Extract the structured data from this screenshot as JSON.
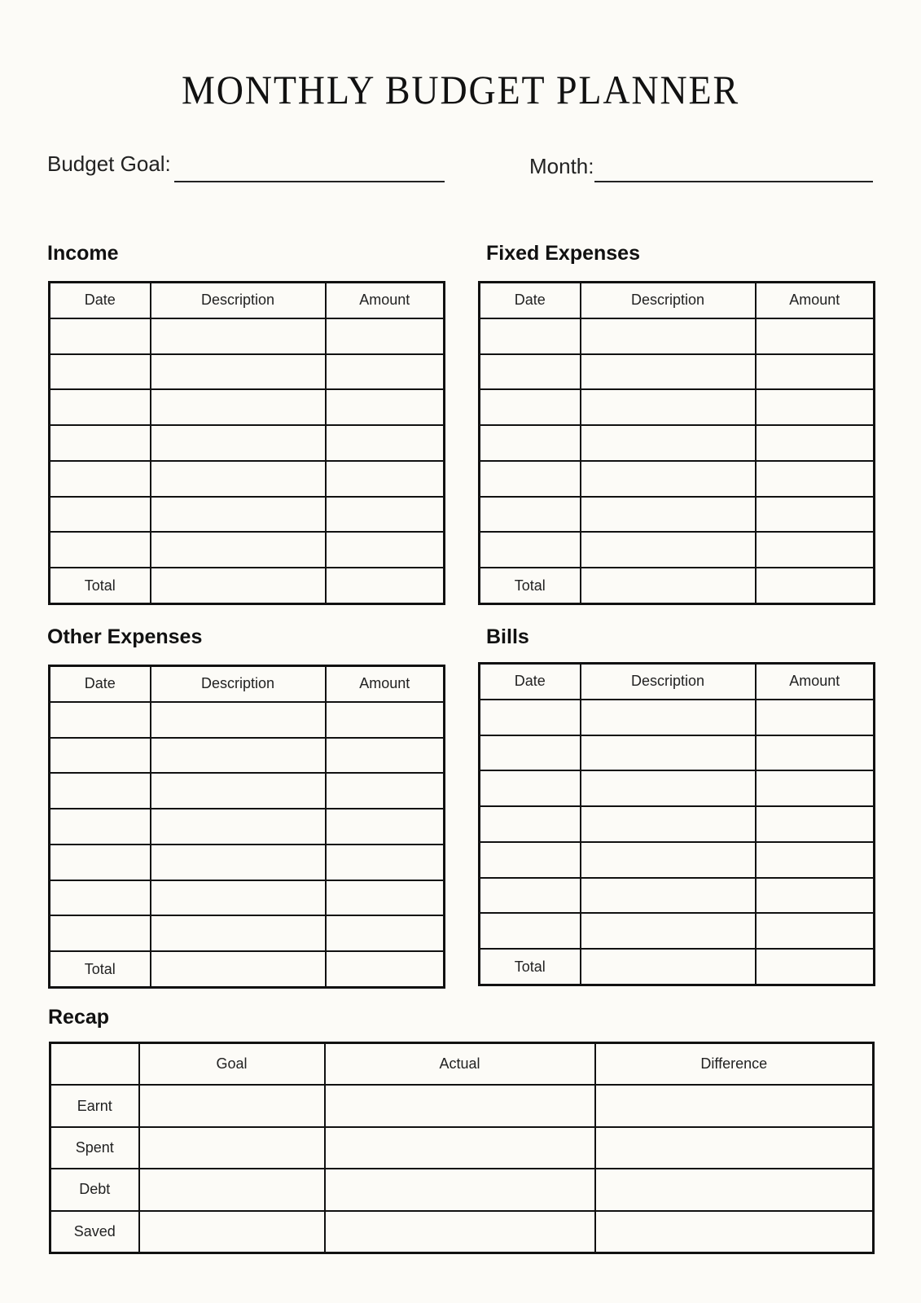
{
  "title": "MONTHLY BUDGET PLANNER",
  "fields": {
    "budget_goal_label": "Budget Goal:",
    "month_label": "Month:"
  },
  "sections": [
    {
      "key": "income",
      "heading": "Income",
      "columns": [
        "Date",
        "Description",
        "Amount"
      ],
      "blank_rows": 7,
      "total_label": "Total"
    },
    {
      "key": "fixed",
      "heading": "Fixed Expenses",
      "columns": [
        "Date",
        "Description",
        "Amount"
      ],
      "blank_rows": 7,
      "total_label": "Total"
    },
    {
      "key": "other",
      "heading": "Other Expenses",
      "columns": [
        "Date",
        "Description",
        "Amount"
      ],
      "blank_rows": 7,
      "total_label": "Total"
    },
    {
      "key": "bills",
      "heading": "Bills",
      "columns": [
        "Date",
        "Description",
        "Amount"
      ],
      "blank_rows": 7,
      "total_label": "Total"
    }
  ],
  "recap": {
    "heading": "Recap",
    "columns": [
      "",
      "Goal",
      "Actual",
      "Difference"
    ],
    "rows": [
      "Earnt",
      "Spent",
      "Debt",
      "Saved"
    ]
  }
}
